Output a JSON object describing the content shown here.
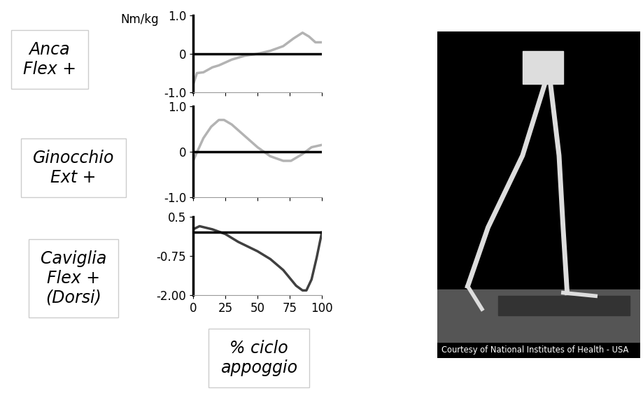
{
  "chart_data": [
    {
      "type": "line",
      "ylabel": "Anca\nFlex +",
      "unit": "Nm/kg",
      "x": [
        0,
        3,
        8,
        15,
        20,
        30,
        40,
        50,
        60,
        70,
        78,
        85,
        90,
        95,
        100
      ],
      "series": [
        {
          "name": "Anca",
          "color": "#b3b3b3",
          "values": [
            -0.8,
            -0.5,
            -0.48,
            -0.35,
            -0.3,
            -0.15,
            -0.05,
            0.0,
            0.08,
            0.2,
            0.4,
            0.55,
            0.45,
            0.3,
            0.3
          ]
        }
      ],
      "xlim": [
        0,
        100
      ],
      "xticks": [
        0,
        25,
        50,
        75,
        100
      ],
      "ylim": [
        -1,
        1
      ],
      "yticks": [
        {
          "value": -1,
          "label": "-1.0"
        },
        0,
        {
          "value": 1,
          "label": "1.0"
        }
      ],
      "hlines": [
        0
      ],
      "tick_labels": "y"
    },
    {
      "type": "line",
      "ylabel": "Ginocchio\nExt +",
      "x": [
        0,
        4,
        8,
        14,
        20,
        24,
        30,
        40,
        50,
        60,
        70,
        76,
        85,
        92,
        100
      ],
      "series": [
        {
          "name": "Ginocchio",
          "color": "#b3b3b3",
          "values": [
            -0.2,
            0.05,
            0.3,
            0.55,
            0.7,
            0.7,
            0.6,
            0.35,
            0.1,
            -0.1,
            -0.2,
            -0.2,
            -0.05,
            0.1,
            0.15
          ]
        }
      ],
      "xlim": [
        0,
        100
      ],
      "xticks": [
        0,
        25,
        50,
        75,
        100
      ],
      "ylim": [
        -1,
        1
      ],
      "yticks": [
        {
          "value": -1,
          "label": "-1.0"
        },
        0,
        {
          "value": 1,
          "label": "1.0"
        }
      ],
      "hlines": [
        0
      ],
      "tick_labels": "y"
    },
    {
      "type": "line",
      "ylabel": "Caviglia\nFlex +\n(Dorsi)",
      "xlabel": "% ciclo\nappoggio",
      "x": [
        0,
        5,
        15,
        25,
        35,
        50,
        60,
        70,
        80,
        85,
        88,
        92,
        96,
        100
      ],
      "series": [
        {
          "name": "Caviglia",
          "color": "#404040",
          "values": [
            0.1,
            0.2,
            0.1,
            -0.05,
            -0.3,
            -0.6,
            -0.85,
            -1.2,
            -1.7,
            -1.85,
            -1.85,
            -1.5,
            -0.8,
            0.0
          ]
        }
      ],
      "xlim": [
        0,
        100
      ],
      "xticks": [
        0,
        25,
        50,
        75,
        100
      ],
      "ylim": [
        -2,
        0.5
      ],
      "yticks": [
        {
          "value": -2,
          "label": "-2.00"
        },
        -0.75,
        0.5
      ],
      "hlines": [
        0
      ]
    }
  ],
  "image_caption": "Courtesy of National Institutes of Health - USA"
}
